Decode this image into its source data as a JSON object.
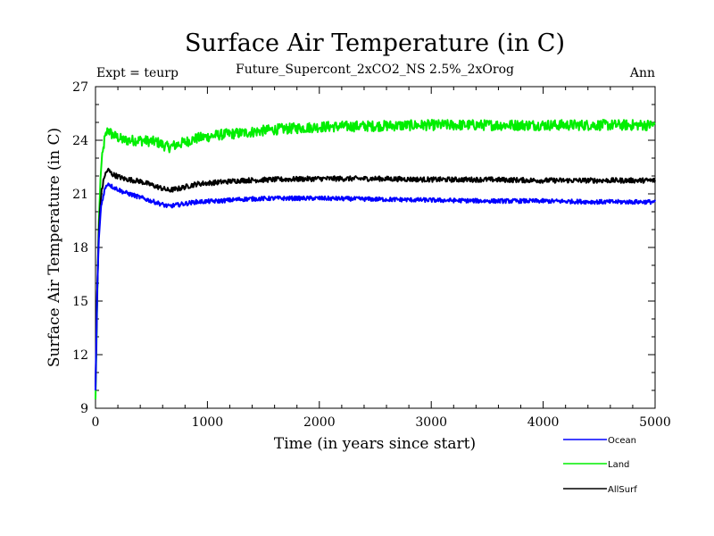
{
  "chart_data": {
    "type": "line",
    "title": "Surface Air Temperature (in C)",
    "subtitle": "Future_Supercont_2xCO2_NS 2.5%_2xOrog",
    "left_label": "Expt = teurp",
    "right_label": "Ann",
    "xlabel": "Time (in years since start)",
    "ylabel": "Surface Air Temperature (in C)",
    "xlim": [
      0,
      5000
    ],
    "ylim": [
      9,
      27
    ],
    "xticks": [
      0,
      1000,
      2000,
      3000,
      4000,
      5000
    ],
    "yticks": [
      9,
      12,
      15,
      18,
      21,
      24,
      27
    ],
    "grid": false,
    "legend_position": "below-right",
    "series": [
      {
        "name": "Ocean",
        "color": "#0000ff",
        "noise": 0.12,
        "points": [
          [
            0,
            10.0
          ],
          [
            15,
            15.5
          ],
          [
            30,
            18.5
          ],
          [
            50,
            20.3
          ],
          [
            80,
            21.2
          ],
          [
            110,
            21.6
          ],
          [
            150,
            21.4
          ],
          [
            250,
            21.1
          ],
          [
            400,
            20.8
          ],
          [
            550,
            20.5
          ],
          [
            650,
            20.3
          ],
          [
            750,
            20.4
          ],
          [
            900,
            20.55
          ],
          [
            1100,
            20.6
          ],
          [
            1300,
            20.7
          ],
          [
            1600,
            20.75
          ],
          [
            2000,
            20.75
          ],
          [
            2500,
            20.7
          ],
          [
            3000,
            20.65
          ],
          [
            3500,
            20.6
          ],
          [
            4000,
            20.6
          ],
          [
            4500,
            20.55
          ],
          [
            5000,
            20.55
          ]
        ]
      },
      {
        "name": "Land",
        "color": "#00ee00",
        "noise": 0.3,
        "points": [
          [
            0,
            9.5
          ],
          [
            15,
            15.0
          ],
          [
            30,
            19.5
          ],
          [
            50,
            22.5
          ],
          [
            80,
            24.0
          ],
          [
            110,
            24.6
          ],
          [
            150,
            24.3
          ],
          [
            250,
            24.0
          ],
          [
            400,
            24.0
          ],
          [
            550,
            23.9
          ],
          [
            650,
            23.6
          ],
          [
            750,
            23.8
          ],
          [
            900,
            24.1
          ],
          [
            1100,
            24.3
          ],
          [
            1300,
            24.4
          ],
          [
            1600,
            24.6
          ],
          [
            2000,
            24.75
          ],
          [
            2500,
            24.8
          ],
          [
            3000,
            24.85
          ],
          [
            3500,
            24.85
          ],
          [
            4000,
            24.85
          ],
          [
            4500,
            24.85
          ],
          [
            5000,
            24.85
          ]
        ]
      },
      {
        "name": "AllSurf",
        "color": "#000000",
        "noise": 0.14,
        "points": [
          [
            0,
            10.2
          ],
          [
            15,
            15.5
          ],
          [
            30,
            19.0
          ],
          [
            50,
            21.0
          ],
          [
            80,
            22.0
          ],
          [
            110,
            22.35
          ],
          [
            150,
            22.1
          ],
          [
            250,
            21.85
          ],
          [
            400,
            21.7
          ],
          [
            550,
            21.4
          ],
          [
            650,
            21.2
          ],
          [
            750,
            21.3
          ],
          [
            900,
            21.55
          ],
          [
            1100,
            21.65
          ],
          [
            1300,
            21.75
          ],
          [
            1600,
            21.8
          ],
          [
            2000,
            21.85
          ],
          [
            2500,
            21.85
          ],
          [
            3000,
            21.8
          ],
          [
            3500,
            21.8
          ],
          [
            4000,
            21.75
          ],
          [
            4500,
            21.75
          ],
          [
            5000,
            21.75
          ]
        ]
      }
    ]
  }
}
